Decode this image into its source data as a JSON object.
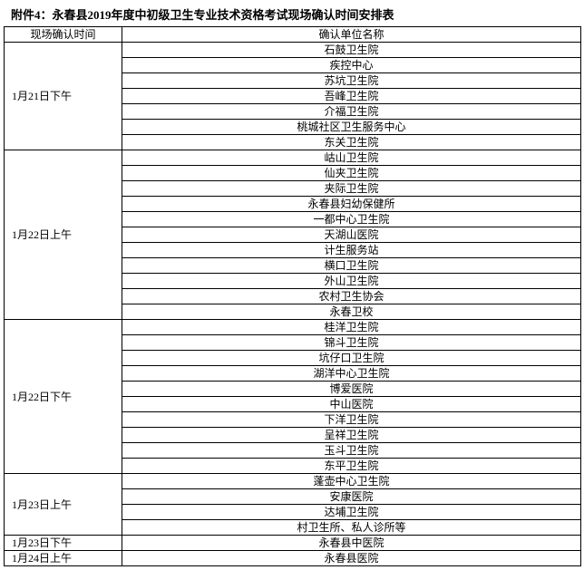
{
  "title": "附件4：永春县2019年度中初级卫生专业技术资格考试现场确认时间安排表",
  "header": {
    "time": "现场确认时间",
    "unit": "确认单位名称"
  },
  "groups": [
    {
      "time": "1月21日下午",
      "units": [
        "石鼓卫生院",
        "疾控中心",
        "苏坑卫生院",
        "吾峰卫生院",
        "介福卫生院",
        "桃城社区卫生服务中心",
        "东关卫生院"
      ]
    },
    {
      "time": "1月22日上午",
      "units": [
        "岵山卫生院",
        "仙夹卫生院",
        "夹际卫生院",
        "永春县妇幼保健所",
        "一都中心卫生院",
        "天湖山医院",
        "计生服务站",
        "横口卫生院",
        "外山卫生院",
        "农村卫生协会",
        "永春卫校"
      ]
    },
    {
      "time": "1月22日下午",
      "units": [
        "桂洋卫生院",
        "锦斗卫生院",
        "坑仔口卫生院",
        "湖洋中心卫生院",
        "博爱医院",
        "中山医院",
        "下洋卫生院",
        "呈祥卫生院",
        "玉斗卫生院",
        "东平卫生院"
      ]
    },
    {
      "time": "1月23日上午",
      "units": [
        "蓬壶中心卫生院",
        "安康医院",
        "达埔卫生院",
        "村卫生所、私人诊所等"
      ]
    },
    {
      "time": "1月23日下午",
      "units": [
        "永春县中医院"
      ]
    },
    {
      "time": "1月24日上午",
      "units": [
        "永春县医院"
      ]
    }
  ]
}
